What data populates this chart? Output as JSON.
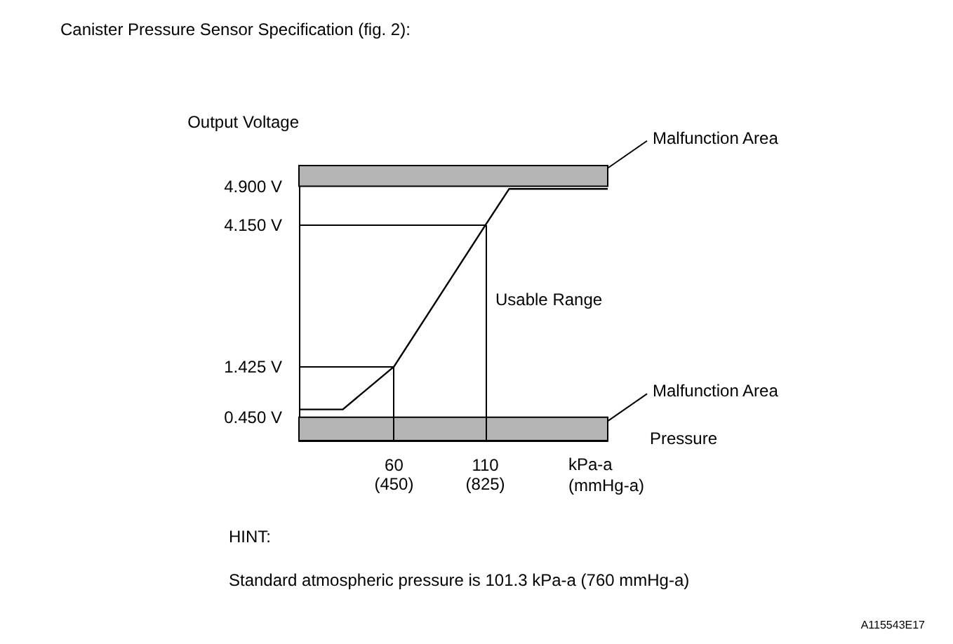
{
  "chart_data": {
    "type": "line",
    "title": "Canister Pressure Sensor Specification (fig. 2):",
    "xlabel": "kPa-a",
    "ylabel": "Output Voltage",
    "series": [
      {
        "color": "#000000",
        "x": [
          8,
          32,
          60,
          110,
          123,
          177
        ],
        "values": [
          0.6,
          0.6,
          1.425,
          4.15,
          4.85,
          4.85
        ]
      }
    ],
    "xlim": [
      8,
      177
    ],
    "xticks": [
      60,
      110
    ],
    "x2lim": [
      60,
      1327.5
    ],
    "x2ticks": [
      {
        "value": 450,
        "label": "(450)"
      },
      {
        "value": 825,
        "label": "(825)"
      }
    ],
    "x2label": "(mmHg-a)",
    "ylim": [
      0,
      5.3
    ],
    "yticks": [
      {
        "value": 0.45,
        "label": "0.450 V"
      },
      {
        "value": 1.425,
        "label": "1.425 V"
      },
      {
        "value": 4.15,
        "label": "4.150 V"
      },
      {
        "value": 4.9,
        "label": "4.900 V"
      }
    ],
    "bands": [
      {
        "axis": "y",
        "from": 4.9,
        "to": 5.3,
        "label": "Malfunction Area",
        "color": "#b4b4b4"
      },
      {
        "axis": "y",
        "from": 0,
        "to": 0.45,
        "label": "Malfunction Area",
        "color": "#b4b4b4"
      }
    ],
    "ref_lines": [
      {
        "axis": "x",
        "value": 60
      },
      {
        "axis": "x",
        "value": 110
      },
      {
        "axis": "y",
        "value": 1.425
      },
      {
        "axis": "y",
        "value": 4.15
      }
    ],
    "annotations": [
      "Usable Range",
      "Pressure",
      "HINT:",
      "Standard atmospheric pressure is 101.3 kPa-a (760 mmHg-a)",
      "A115543E17"
    ],
    "grid": false,
    "marker": "none",
    "line_style": "solid"
  }
}
